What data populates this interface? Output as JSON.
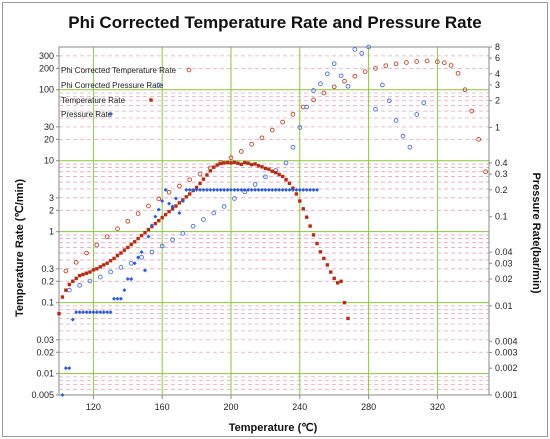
{
  "chart_data": {
    "type": "scatter",
    "title": "Phi Corrected Temperature Rate and Pressure Rate",
    "xlabel": "Temperature (℃)",
    "ylabel_left": "Temperature Rate (℃/min)",
    "ylabel_right": "Pressure Rate(bar/min)",
    "x_ticks": [
      "120",
      "160",
      "200",
      "240",
      "280",
      "320"
    ],
    "y_left_ticks": [
      "300",
      "200",
      "100",
      "30",
      "20",
      "10",
      "3",
      "2",
      "1",
      "0.3",
      "0.2",
      "0.1",
      "0.03",
      "0.02",
      "0.01",
      "0.005"
    ],
    "y_right_ticks": [
      "8",
      "6",
      "4",
      "3",
      "2",
      "1",
      "0.4",
      "0.3",
      "0.2",
      "0.1",
      "0.04",
      "0.03",
      "0.02",
      "0.01",
      "0.004",
      "0.003",
      "0.002",
      "0.001"
    ],
    "x_range": [
      100,
      350
    ],
    "y_left_range": [
      0.005,
      400
    ],
    "y_left_scale": "log",
    "y_right_range": [
      0.001,
      8
    ],
    "y_right_scale": "log",
    "grid": true,
    "legend_placement": "top-left",
    "colors": {
      "phi_temp": "#b84a2e",
      "phi_press": "#4a73d8",
      "temp": "#b42d14",
      "press": "#2d5bd8",
      "grid_major": "#8cc63f",
      "grid_minor": "#e8a6c3",
      "axis": "#8a8a8a"
    },
    "series": [
      {
        "name": "Phi Corrected Temperature Rate",
        "axis": "left",
        "marker": "open-circle",
        "x": [
          104,
          110,
          116,
          122,
          128,
          134,
          140,
          146,
          152,
          158,
          164,
          170,
          176,
          182,
          188,
          194,
          200,
          206,
          212,
          218,
          224,
          230,
          236,
          242,
          248,
          254,
          260,
          266,
          272,
          278,
          284,
          290,
          296,
          302,
          308,
          314,
          320,
          324,
          328,
          332,
          336,
          340,
          344,
          348
        ],
        "y": [
          0.28,
          0.37,
          0.5,
          0.65,
          0.85,
          1.1,
          1.4,
          1.8,
          2.3,
          2.9,
          3.6,
          4.4,
          5.4,
          6.5,
          7.9,
          9.5,
          11,
          13.5,
          17,
          21,
          27,
          35,
          45,
          57,
          72,
          90,
          110,
          132,
          155,
          180,
          200,
          218,
          232,
          242,
          250,
          254,
          248,
          240,
          220,
          170,
          100,
          50,
          20,
          7
        ]
      },
      {
        "name": "Phi Corrected Pressure Rate",
        "axis": "right",
        "marker": "open-circle",
        "x": [
          106,
          112,
          118,
          124,
          130,
          136,
          142,
          148,
          154,
          160,
          166,
          172,
          178,
          184,
          190,
          196,
          202,
          208,
          214,
          220,
          226,
          232,
          236,
          240,
          244,
          248,
          252,
          256,
          260,
          264,
          268,
          272,
          276,
          280,
          284,
          288,
          292,
          296,
          300,
          304,
          308,
          312
        ],
        "y": [
          0.015,
          0.017,
          0.019,
          0.021,
          0.024,
          0.027,
          0.03,
          0.035,
          0.04,
          0.047,
          0.055,
          0.065,
          0.078,
          0.093,
          0.11,
          0.13,
          0.16,
          0.19,
          0.23,
          0.28,
          0.33,
          0.4,
          0.6,
          1.0,
          1.7,
          2.6,
          3.1,
          4.0,
          5.2,
          3.8,
          2.9,
          7.5,
          6.8,
          8.0,
          1.6,
          3.0,
          2.0,
          1.2,
          0.8,
          0.6,
          1.4,
          1.9
        ]
      },
      {
        "name": "Temperature Rate",
        "axis": "left",
        "marker": "filled-square",
        "x": [
          100,
          102,
          104,
          106,
          108,
          110,
          112,
          114,
          116,
          118,
          120,
          122,
          124,
          126,
          128,
          130,
          132,
          134,
          136,
          138,
          140,
          142,
          144,
          146,
          148,
          150,
          152,
          154,
          156,
          158,
          160,
          162,
          164,
          166,
          168,
          170,
          172,
          174,
          176,
          178,
          180,
          182,
          184,
          186,
          188,
          190,
          192,
          194,
          196,
          198,
          200,
          202,
          204,
          206,
          208,
          210,
          212,
          214,
          216,
          218,
          220,
          222,
          224,
          226,
          228,
          230,
          232,
          234,
          236,
          238,
          240,
          242,
          244,
          246,
          248,
          250,
          252,
          254,
          256,
          258,
          260,
          262,
          264,
          266,
          268
        ],
        "y": [
          0.07,
          0.12,
          0.15,
          0.18,
          0.2,
          0.22,
          0.24,
          0.25,
          0.26,
          0.27,
          0.29,
          0.3,
          0.32,
          0.34,
          0.36,
          0.39,
          0.42,
          0.46,
          0.5,
          0.55,
          0.6,
          0.66,
          0.72,
          0.8,
          0.88,
          0.97,
          1.07,
          1.18,
          1.3,
          1.43,
          1.58,
          1.74,
          1.92,
          2.1,
          2.3,
          2.55,
          2.8,
          3.1,
          3.4,
          3.8,
          4.2,
          4.8,
          5.5,
          6.3,
          7.2,
          8.1,
          8.7,
          9.1,
          9.3,
          9.4,
          9.3,
          9.5,
          9.2,
          8.9,
          9.4,
          9.2,
          8.8,
          9.0,
          8.5,
          8.2,
          7.8,
          7.6,
          7.1,
          6.8,
          6.4,
          6.0,
          5.4,
          4.8,
          4.1,
          3.4,
          2.7,
          2.1,
          1.6,
          1.2,
          0.9,
          0.68,
          0.52,
          0.42,
          0.34,
          0.27,
          0.22,
          0.19,
          0.2,
          0.1,
          0.06
        ]
      },
      {
        "name": "Pressure Rate",
        "axis": "right",
        "marker": "filled-diamond",
        "x": [
          102,
          104,
          106,
          108,
          110,
          112,
          114,
          116,
          118,
          120,
          122,
          124,
          126,
          128,
          130,
          132,
          134,
          136,
          138,
          140,
          142,
          144,
          146,
          148,
          150,
          152,
          154,
          156,
          158,
          160,
          162,
          164,
          166,
          168,
          170,
          172,
          174,
          176,
          178,
          180,
          182,
          184,
          186,
          188,
          190,
          192,
          194,
          196,
          198,
          200,
          202,
          204,
          206,
          208,
          210,
          212,
          214,
          216,
          218,
          220,
          222,
          224,
          226,
          228,
          230,
          232,
          234,
          236,
          238,
          240,
          242,
          244,
          246,
          248,
          250
        ],
        "y": [
          0.001,
          0.002,
          0.002,
          0.007,
          0.0085,
          0.0085,
          0.0085,
          0.0085,
          0.0085,
          0.0085,
          0.0085,
          0.0085,
          0.0085,
          0.0085,
          0.0085,
          0.012,
          0.012,
          0.012,
          0.015,
          0.02,
          0.02,
          0.03,
          0.035,
          0.04,
          0.025,
          0.06,
          0.08,
          0.1,
          0.12,
          0.15,
          0.2,
          0.14,
          0.13,
          0.16,
          0.11,
          0.15,
          0.2,
          0.2,
          0.2,
          0.2,
          0.2,
          0.2,
          0.2,
          0.2,
          0.2,
          0.2,
          0.2,
          0.2,
          0.2,
          0.2,
          0.2,
          0.2,
          0.2,
          0.2,
          0.2,
          0.2,
          0.2,
          0.2,
          0.2,
          0.2,
          0.2,
          0.2,
          0.2,
          0.2,
          0.2,
          0.2,
          0.2,
          0.2,
          0.2,
          0.2,
          0.2,
          0.2,
          0.2,
          0.2,
          0.2
        ]
      }
    ]
  }
}
